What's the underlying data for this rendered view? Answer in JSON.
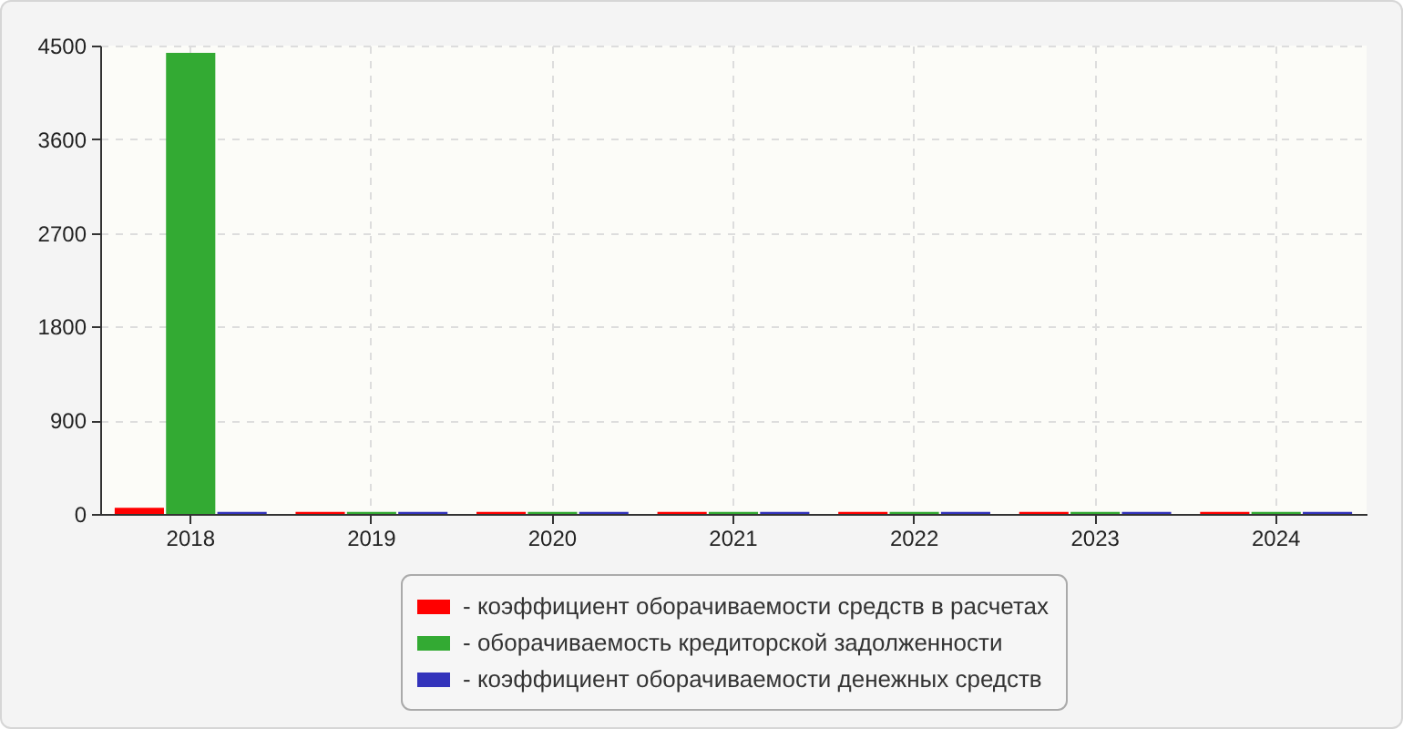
{
  "chart_data": {
    "type": "bar",
    "categories": [
      "2018",
      "2019",
      "2020",
      "2021",
      "2022",
      "2023",
      "2024"
    ],
    "series": [
      {
        "name": "- коэффициент оборачиваемости средств в расчетах",
        "color": "#ff0000",
        "values": [
          60,
          20,
          20,
          20,
          20,
          20,
          20
        ]
      },
      {
        "name": "- оборачиваемость кредиторской задолженности",
        "color": "#33aa33",
        "values": [
          4430,
          20,
          20,
          20,
          20,
          20,
          20
        ]
      },
      {
        "name": "- коэффициент оборачиваемости денежных средств",
        "color": "#3333bb",
        "values": [
          20,
          20,
          20,
          20,
          20,
          20,
          20
        ]
      }
    ],
    "ylim": [
      0,
      4500
    ],
    "yticks": [
      0,
      900,
      1800,
      2700,
      3600,
      4500
    ],
    "grid": true,
    "legend": "bottom"
  }
}
